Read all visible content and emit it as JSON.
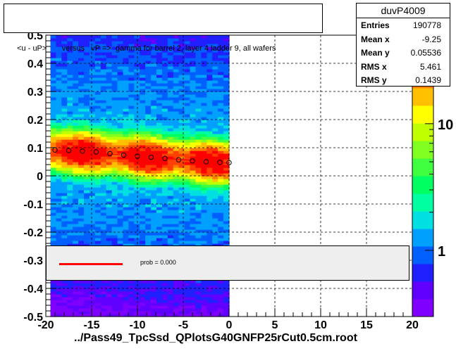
{
  "title": "<u - uP>       versus   vP =>  gamma for barrel 2, layer 4 ladder 9, all wafers",
  "stats": {
    "name": "duvP4009",
    "rows": [
      {
        "key": "Entries",
        "value": "190778"
      },
      {
        "key": "Mean x",
        "value": "-9.25"
      },
      {
        "key": "Mean y",
        "value": "0.05536"
      },
      {
        "key": "RMS x",
        "value": "5.461"
      },
      {
        "key": "RMS y",
        "value": "0.1439"
      }
    ]
  },
  "legend": {
    "label": "prob = 0.000",
    "color": "#ff0000"
  },
  "xlabel": "../Pass49_TpcSsd_QPlotsG40GNFP25rCut0.5cm.root",
  "colors": {
    "palette": [
      "#8000ff",
      "#6000ff",
      "#2020ff",
      "#0060ff",
      "#00a0ff",
      "#00e0e0",
      "#00ffa0",
      "#00ff60",
      "#40ff40",
      "#80ff20",
      "#c0ff00",
      "#ffff00",
      "#ffc000",
      "#ff8000",
      "#ff4000",
      "#ff0000"
    ],
    "fit_line": "#ff0000",
    "band": "#a0ffa0"
  },
  "chart_data": {
    "type": "heatmap",
    "xlim": [
      -20,
      20
    ],
    "ylim": [
      -0.5,
      0.5
    ],
    "x_ticks": [
      "-20",
      "-15",
      "-10",
      "-5",
      "0",
      "5",
      "10",
      "15",
      "20"
    ],
    "y_ticks": [
      "-0.5",
      "-0.4",
      "-0.3",
      "-0.2",
      "-0.1",
      "0",
      "0.1",
      "0.2",
      "0.3",
      "0.4",
      "0.5"
    ],
    "z_ticks": [
      "1",
      "10"
    ],
    "z_tick_values": [
      1,
      10
    ],
    "zlim": [
      0.3,
      50
    ],
    "z_scale": "log",
    "grid": true,
    "occupied_x_range": [
      -19.5,
      0
    ],
    "profile": {
      "x": [
        -19,
        -17.5,
        -16,
        -14.5,
        -13,
        -11.5,
        -10,
        -8.5,
        -7,
        -5.5,
        -4,
        -2.5,
        -1,
        0
      ],
      "y": [
        0.092,
        0.09,
        0.088,
        0.085,
        0.079,
        0.074,
        0.07,
        0.066,
        0.062,
        0.057,
        0.053,
        0.05,
        0.048,
        0.047
      ]
    },
    "fit": {
      "x": [
        -19.5,
        0
      ],
      "y": [
        0.093,
        0.045
      ]
    }
  }
}
